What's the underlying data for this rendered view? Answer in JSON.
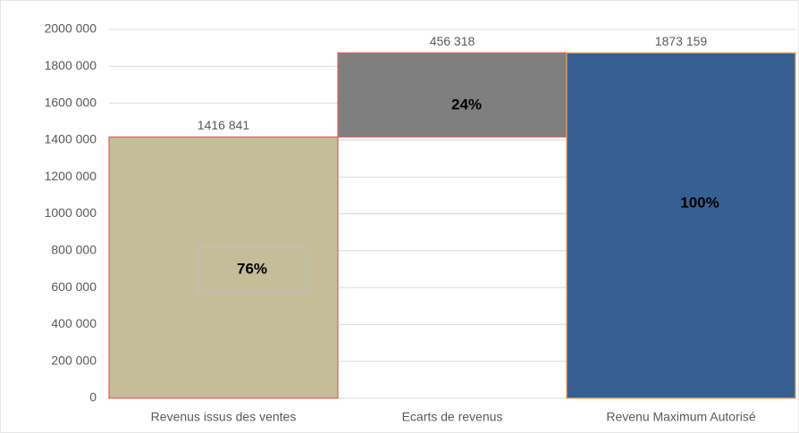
{
  "chart_data": {
    "type": "waterfall",
    "categories": [
      "Revenus issus des ventes",
      "Ecarts de revenus",
      "Revenu Maximum Autorisé"
    ],
    "values": [
      1416841,
      456318,
      1873159
    ],
    "value_labels": [
      "1416 841",
      "456 318",
      "1873 159"
    ],
    "totals": [
      false,
      false,
      true
    ],
    "shares": [
      76,
      24,
      100
    ],
    "share_labels": [
      "76%",
      "24%",
      "100%"
    ],
    "colors": [
      "#c4bd97",
      "#7f7f7f",
      "#376092"
    ],
    "edge_colors": [
      "#e06060",
      "#e06060",
      "#f0a050"
    ],
    "ylim": [
      0,
      2000000
    ],
    "yticks": [
      0,
      {
        "value": 200000,
        "label": "200 000"
      },
      {
        "value": 400000,
        "label": "400 000"
      },
      {
        "value": 600000,
        "label": "600 000"
      },
      {
        "value": 800000,
        "label": "800 000"
      },
      {
        "value": 1000000,
        "label": "1000 000"
      },
      {
        "value": 1200000,
        "label": "1200 000"
      },
      {
        "value": 1400000,
        "label": "1400 000"
      },
      {
        "value": 1600000,
        "label": "1600 000"
      },
      {
        "value": 1800000,
        "label": "1800 000"
      },
      {
        "value": 2000000,
        "label": "2000 000"
      }
    ],
    "grid": true
  }
}
